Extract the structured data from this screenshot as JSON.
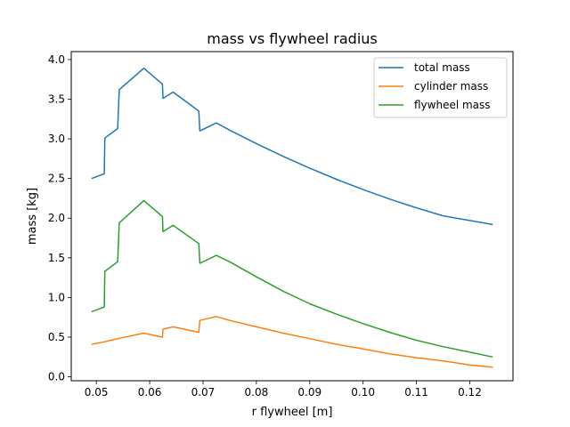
{
  "chart_data": {
    "type": "line",
    "title": "mass vs flywheel radius",
    "xlabel": "r flywheel [m]",
    "ylabel": "mass [kg]",
    "xlim": [
      0.0453,
      0.1281
    ],
    "ylim": [
      -0.05,
      4.1
    ],
    "xticks": [
      0.05,
      0.06,
      0.07,
      0.08,
      0.09,
      0.1,
      0.11,
      0.12
    ],
    "xtick_labels": [
      "0.05",
      "0.06",
      "0.07",
      "0.08",
      "0.09",
      "0.10",
      "0.11",
      "0.12"
    ],
    "yticks": [
      0.0,
      0.5,
      1.0,
      1.5,
      2.0,
      2.5,
      3.0,
      3.5,
      4.0
    ],
    "ytick_labels": [
      "0.0",
      "0.5",
      "1.0",
      "1.5",
      "2.0",
      "2.5",
      "3.0",
      "3.5",
      "4.0"
    ],
    "grid": false,
    "legend_position": "top-right",
    "series": [
      {
        "name": "total mass",
        "color": "#1f77b4",
        "points": [
          [
            0.0491,
            2.5
          ],
          [
            0.0515,
            2.56
          ],
          [
            0.0516,
            3.01
          ],
          [
            0.054,
            3.13
          ],
          [
            0.0543,
            3.62
          ],
          [
            0.0589,
            3.89
          ],
          [
            0.0624,
            3.69
          ],
          [
            0.0625,
            3.51
          ],
          [
            0.0644,
            3.59
          ],
          [
            0.0692,
            3.35
          ],
          [
            0.0694,
            3.1
          ],
          [
            0.0725,
            3.2
          ],
          [
            0.075,
            3.11
          ],
          [
            0.08,
            2.94
          ],
          [
            0.085,
            2.78
          ],
          [
            0.09,
            2.63
          ],
          [
            0.095,
            2.49
          ],
          [
            0.1,
            2.36
          ],
          [
            0.105,
            2.24
          ],
          [
            0.11,
            2.13
          ],
          [
            0.115,
            2.03
          ],
          [
            0.12,
            1.97
          ],
          [
            0.1243,
            1.92
          ]
        ]
      },
      {
        "name": "cylinder mass",
        "color": "#ff7f0e",
        "points": [
          [
            0.0491,
            0.41
          ],
          [
            0.0515,
            0.44
          ],
          [
            0.054,
            0.48
          ],
          [
            0.0589,
            0.55
          ],
          [
            0.0624,
            0.5
          ],
          [
            0.0625,
            0.6
          ],
          [
            0.0644,
            0.63
          ],
          [
            0.0692,
            0.56
          ],
          [
            0.0694,
            0.71
          ],
          [
            0.0725,
            0.76
          ],
          [
            0.075,
            0.71
          ],
          [
            0.08,
            0.63
          ],
          [
            0.085,
            0.55
          ],
          [
            0.09,
            0.48
          ],
          [
            0.095,
            0.41
          ],
          [
            0.1,
            0.35
          ],
          [
            0.105,
            0.29
          ],
          [
            0.11,
            0.24
          ],
          [
            0.115,
            0.2
          ],
          [
            0.12,
            0.15
          ],
          [
            0.1243,
            0.12
          ]
        ]
      },
      {
        "name": "flywheel mass",
        "color": "#2ca02c",
        "points": [
          [
            0.0491,
            0.82
          ],
          [
            0.0515,
            0.88
          ],
          [
            0.0516,
            1.33
          ],
          [
            0.054,
            1.45
          ],
          [
            0.0543,
            1.94
          ],
          [
            0.0589,
            2.22
          ],
          [
            0.0624,
            2.02
          ],
          [
            0.0625,
            1.83
          ],
          [
            0.0644,
            1.91
          ],
          [
            0.0692,
            1.68
          ],
          [
            0.0694,
            1.43
          ],
          [
            0.0725,
            1.53
          ],
          [
            0.075,
            1.45
          ],
          [
            0.08,
            1.26
          ],
          [
            0.085,
            1.08
          ],
          [
            0.09,
            0.92
          ],
          [
            0.095,
            0.79
          ],
          [
            0.1,
            0.67
          ],
          [
            0.105,
            0.56
          ],
          [
            0.11,
            0.46
          ],
          [
            0.115,
            0.38
          ],
          [
            0.12,
            0.31
          ],
          [
            0.1243,
            0.25
          ]
        ]
      }
    ]
  }
}
